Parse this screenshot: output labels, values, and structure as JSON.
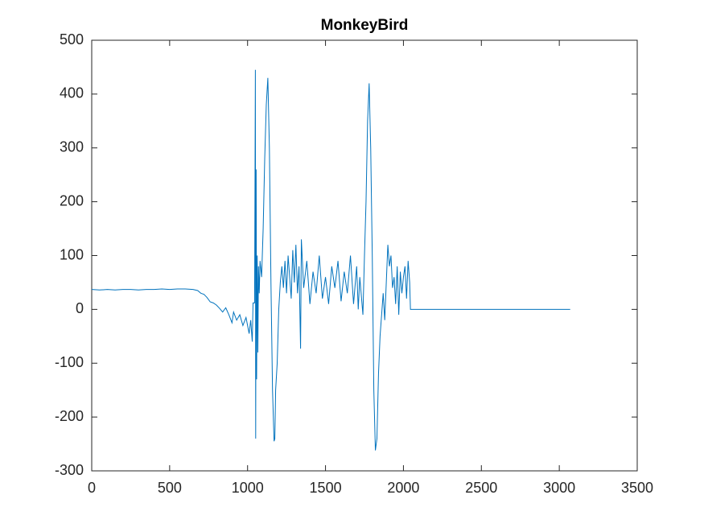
{
  "chart_data": {
    "type": "line",
    "title": "MonkeyBird",
    "color": "#0072bd",
    "x": [
      0,
      50,
      100,
      150,
      200,
      250,
      300,
      350,
      400,
      450,
      500,
      550,
      600,
      650,
      680,
      700,
      720,
      740,
      760,
      780,
      800,
      820,
      840,
      860,
      880,
      900,
      910,
      930,
      950,
      970,
      990,
      1010,
      1020,
      1030,
      1035,
      1045,
      1050,
      1052,
      1055,
      1058,
      1062,
      1066,
      1070,
      1075,
      1080,
      1090,
      1100,
      1110,
      1120,
      1130,
      1140,
      1150,
      1160,
      1170,
      1175,
      1180,
      1190,
      1200,
      1210,
      1220,
      1230,
      1240,
      1250,
      1260,
      1270,
      1280,
      1290,
      1300,
      1310,
      1320,
      1330,
      1340,
      1345,
      1360,
      1380,
      1400,
      1420,
      1440,
      1460,
      1480,
      1500,
      1520,
      1540,
      1560,
      1580,
      1600,
      1620,
      1640,
      1660,
      1680,
      1700,
      1710,
      1720,
      1740,
      1750,
      1760,
      1770,
      1780,
      1790,
      1800,
      1810,
      1820,
      1830,
      1840,
      1850,
      1860,
      1870,
      1880,
      1890,
      1900,
      1910,
      1920,
      1930,
      1940,
      1950,
      1960,
      1970,
      1980,
      1990,
      2000,
      2010,
      2020,
      2030,
      2040,
      2045,
      3070
    ],
    "values": [
      37,
      36,
      37,
      36,
      37,
      37,
      36,
      37,
      37,
      38,
      37,
      38,
      38,
      37,
      35,
      30,
      28,
      22,
      14,
      12,
      8,
      2,
      -5,
      3,
      -10,
      -25,
      -5,
      -20,
      -10,
      -30,
      -15,
      -45,
      -20,
      -60,
      12,
      12,
      445,
      -240,
      260,
      -130,
      100,
      -80,
      80,
      30,
      90,
      60,
      150,
      280,
      380,
      430,
      300,
      50,
      -150,
      -245,
      -240,
      -150,
      -100,
      0,
      50,
      80,
      40,
      90,
      30,
      100,
      60,
      20,
      110,
      50,
      120,
      30,
      80,
      -73,
      130,
      40,
      90,
      10,
      70,
      30,
      100,
      20,
      60,
      10,
      80,
      40,
      90,
      15,
      70,
      30,
      100,
      10,
      80,
      0,
      60,
      -10,
      100,
      200,
      350,
      420,
      300,
      100,
      -150,
      -262,
      -240,
      -120,
      -50,
      -10,
      30,
      -20,
      50,
      120,
      80,
      100,
      40,
      60,
      10,
      80,
      -10,
      70,
      30,
      60,
      80,
      20,
      90,
      50,
      0,
      0
    ],
    "xlim": [
      0,
      3500
    ],
    "xticks": [
      0,
      500,
      1000,
      1500,
      2000,
      2500,
      3000,
      3500
    ],
    "ylim": [
      -300,
      500
    ],
    "yticks": [
      -300,
      -200,
      -100,
      0,
      100,
      200,
      300,
      400,
      500
    ]
  }
}
